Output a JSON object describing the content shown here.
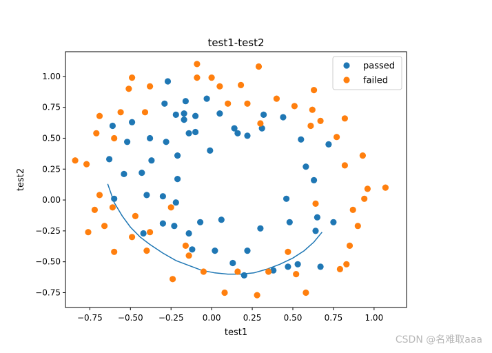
{
  "watermark": "CSDN @名难取aaa",
  "chart_data": {
    "type": "scatter",
    "title": "test1-test2",
    "xlabel": "test1",
    "ylabel": "test2",
    "xlim": [
      -0.9,
      1.2
    ],
    "ylim": [
      -0.87,
      1.2
    ],
    "xticks": [
      -0.75,
      -0.5,
      -0.25,
      0.0,
      0.25,
      0.5,
      0.75,
      1.0
    ],
    "xtick_labels": [
      "−0.75",
      "−0.50",
      "−0.25",
      "0.00",
      "0.25",
      "0.50",
      "0.75",
      "1.00"
    ],
    "yticks": [
      -0.75,
      -0.5,
      -0.25,
      0.0,
      0.25,
      0.5,
      0.75,
      1.0
    ],
    "ytick_labels": [
      "−0.75",
      "−0.50",
      "−0.25",
      "0.00",
      "0.25",
      "0.50",
      "0.75",
      "1.00"
    ],
    "grid": false,
    "legend_position": "top-right",
    "series": [
      {
        "name": "passed",
        "color": "#1f77b4",
        "points": [
          [
            -0.27,
            0.96
          ],
          [
            -0.03,
            0.82
          ],
          [
            -0.29,
            0.78
          ],
          [
            -0.16,
            0.8
          ],
          [
            -0.22,
            0.69
          ],
          [
            -0.17,
            0.7
          ],
          [
            -0.1,
            0.68
          ],
          [
            0.05,
            0.7
          ],
          [
            0.32,
            0.69
          ],
          [
            0.44,
            0.67
          ],
          [
            -0.17,
            0.65
          ],
          [
            -0.49,
            0.63
          ],
          [
            -0.61,
            0.6
          ],
          [
            0.14,
            0.58
          ],
          [
            0.31,
            0.58
          ],
          [
            -0.14,
            0.54
          ],
          [
            -0.1,
            0.55
          ],
          [
            0.16,
            0.54
          ],
          [
            0.22,
            0.52
          ],
          [
            -0.38,
            0.5
          ],
          [
            0.55,
            0.49
          ],
          [
            -0.52,
            0.47
          ],
          [
            -0.28,
            0.47
          ],
          [
            0.72,
            0.45
          ],
          [
            -0.01,
            0.4
          ],
          [
            -0.21,
            0.36
          ],
          [
            -0.63,
            0.33
          ],
          [
            -0.37,
            0.32
          ],
          [
            0.58,
            0.27
          ],
          [
            -0.43,
            0.22
          ],
          [
            -0.54,
            0.21
          ],
          [
            -0.21,
            0.17
          ],
          [
            0.63,
            0.16
          ],
          [
            -0.6,
            0.01
          ],
          [
            -0.4,
            0.04
          ],
          [
            -0.3,
            0.03
          ],
          [
            -0.22,
            -0.02
          ],
          [
            0.46,
            0.01
          ],
          [
            0.06,
            -0.16
          ],
          [
            -0.3,
            -0.19
          ],
          [
            -0.07,
            -0.18
          ],
          [
            0.48,
            -0.18
          ],
          [
            0.65,
            -0.14
          ],
          [
            0.75,
            -0.18
          ],
          [
            -0.23,
            -0.21
          ],
          [
            0.3,
            -0.23
          ],
          [
            0.64,
            -0.25
          ],
          [
            -0.42,
            -0.27
          ],
          [
            -0.14,
            -0.27
          ],
          [
            -0.12,
            -0.4
          ],
          [
            0.02,
            -0.41
          ],
          [
            0.22,
            -0.41
          ],
          [
            0.13,
            -0.51
          ],
          [
            0.38,
            -0.57
          ],
          [
            0.47,
            -0.54
          ],
          [
            0.53,
            -0.52
          ],
          [
            0.67,
            -0.54
          ],
          [
            0.2,
            -0.61
          ]
        ]
      },
      {
        "name": "failed",
        "color": "#ff7f0e",
        "points": [
          [
            -0.09,
            1.1
          ],
          [
            0.29,
            1.08
          ],
          [
            -0.49,
            0.99
          ],
          [
            -0.09,
            0.99
          ],
          [
            0.0,
            0.99
          ],
          [
            -0.51,
            0.9
          ],
          [
            -0.38,
            0.92
          ],
          [
            0.05,
            0.92
          ],
          [
            0.18,
            0.93
          ],
          [
            0.63,
            0.89
          ],
          [
            0.4,
            0.82
          ],
          [
            0.1,
            0.78
          ],
          [
            0.22,
            0.78
          ],
          [
            0.51,
            0.76
          ],
          [
            -0.56,
            0.71
          ],
          [
            -0.41,
            0.71
          ],
          [
            0.62,
            0.73
          ],
          [
            -0.69,
            0.68
          ],
          [
            0.82,
            0.66
          ],
          [
            0.67,
            0.64
          ],
          [
            0.3,
            0.62
          ],
          [
            0.61,
            0.6
          ],
          [
            -0.71,
            0.54
          ],
          [
            -0.6,
            0.5
          ],
          [
            0.77,
            0.51
          ],
          [
            0.93,
            0.36
          ],
          [
            -0.84,
            0.32
          ],
          [
            -0.77,
            0.29
          ],
          [
            0.82,
            0.28
          ],
          [
            1.07,
            0.1
          ],
          [
            0.96,
            0.09
          ],
          [
            -0.69,
            0.04
          ],
          [
            0.94,
            0.01
          ],
          [
            0.64,
            -0.03
          ],
          [
            -0.61,
            -0.06
          ],
          [
            -0.72,
            -0.08
          ],
          [
            0.87,
            -0.08
          ],
          [
            -0.47,
            -0.13
          ],
          [
            -0.25,
            -0.06
          ],
          [
            0.9,
            -0.21
          ],
          [
            -0.66,
            -0.21
          ],
          [
            -0.76,
            -0.26
          ],
          [
            -0.38,
            -0.26
          ],
          [
            -0.49,
            -0.3
          ],
          [
            -0.16,
            -0.37
          ],
          [
            0.85,
            -0.37
          ],
          [
            -0.6,
            -0.42
          ],
          [
            -0.4,
            -0.41
          ],
          [
            0.47,
            -0.42
          ],
          [
            -0.14,
            -0.45
          ],
          [
            0.83,
            -0.52
          ],
          [
            0.79,
            -0.56
          ],
          [
            -0.05,
            -0.58
          ],
          [
            0.35,
            -0.58
          ],
          [
            0.16,
            -0.58
          ],
          [
            0.52,
            -0.6
          ],
          [
            -0.24,
            -0.64
          ],
          [
            0.58,
            -0.75
          ],
          [
            0.08,
            -0.75
          ],
          [
            0.28,
            -0.77
          ]
        ]
      }
    ],
    "boundary_curve": {
      "color": "#1f77b4",
      "points": [
        [
          -0.64,
          0.13
        ],
        [
          -0.6,
          -0.02
        ],
        [
          -0.55,
          -0.13
        ],
        [
          -0.5,
          -0.22
        ],
        [
          -0.44,
          -0.3
        ],
        [
          -0.38,
          -0.36
        ],
        [
          -0.3,
          -0.43
        ],
        [
          -0.22,
          -0.49
        ],
        [
          -0.14,
          -0.53
        ],
        [
          -0.06,
          -0.57
        ],
        [
          0.02,
          -0.59
        ],
        [
          0.1,
          -0.6
        ],
        [
          0.18,
          -0.6
        ],
        [
          0.26,
          -0.59
        ],
        [
          0.34,
          -0.56
        ],
        [
          0.42,
          -0.52
        ],
        [
          0.5,
          -0.47
        ],
        [
          0.57,
          -0.41
        ],
        [
          0.63,
          -0.34
        ],
        [
          0.68,
          -0.26
        ]
      ]
    }
  }
}
